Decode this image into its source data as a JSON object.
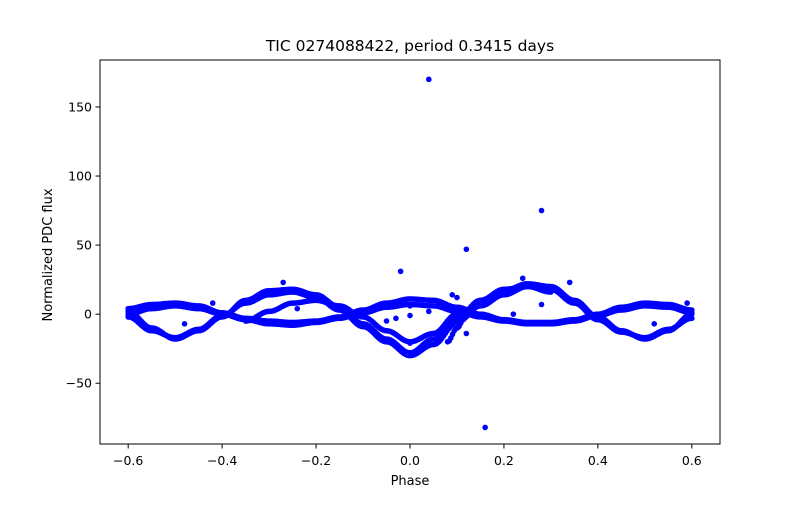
{
  "chart_data": {
    "type": "scatter",
    "title": "TIC 0274088422, period 0.3415 days",
    "xlabel": "Phase",
    "ylabel": "Normalized PDC flux",
    "xlim": [
      -0.66,
      0.66
    ],
    "ylim": [
      -94,
      184
    ],
    "xticks": [
      -0.6,
      -0.4,
      -0.2,
      0.0,
      0.2,
      0.4,
      0.6
    ],
    "xtick_labels": [
      "−0.6",
      "−0.4",
      "−0.2",
      "0.0",
      "0.2",
      "0.4",
      "0.6"
    ],
    "yticks": [
      -50,
      0,
      50,
      100,
      150
    ],
    "ytick_labels": [
      "−50",
      "0",
      "50",
      "100",
      "150"
    ],
    "grid": false,
    "colors": {
      "points": "#0000ff"
    },
    "series": [
      {
        "traces": [
          {
            "x": [
              -0.6,
              -0.55,
              -0.5,
              -0.45,
              -0.4,
              -0.35,
              -0.3,
              -0.25,
              -0.2,
              -0.15,
              -0.1,
              -0.05,
              0.0,
              0.05,
              0.1,
              0.15,
              0.2,
              0.25,
              0.3,
              0.35,
              0.4,
              0.45,
              0.5,
              0.55,
              0.6
            ],
            "y": [
              2,
              -10,
              -18,
              -12,
              -2,
              10,
              17,
              18,
              14,
              5,
              -7,
              -18,
              -28,
              -18,
              -3,
              10,
              17,
              22,
              20,
              10,
              -2,
              -12,
              -18,
              -12,
              0
            ]
          },
          {
            "x": [
              -0.6,
              -0.55,
              -0.5,
              -0.45,
              -0.4,
              -0.35,
              -0.3,
              -0.25,
              -0.2,
              -0.15,
              -0.1,
              -0.05,
              0.0,
              0.05,
              0.1,
              0.15,
              0.2,
              0.25,
              0.3,
              0.35,
              0.4,
              0.45,
              0.5,
              0.55,
              0.6
            ],
            "y": [
              -2,
              -12,
              -17,
              -11,
              -1,
              8,
              14,
              16,
              12,
              3,
              -9,
              -20,
              -30,
              -22,
              -6,
              6,
              14,
              20,
              18,
              8,
              -4,
              -13,
              -17,
              -11,
              -3
            ]
          },
          {
            "x": [
              -0.6,
              -0.55,
              -0.5,
              -0.45,
              -0.4,
              -0.35,
              -0.3,
              -0.25,
              -0.2,
              -0.15,
              -0.1,
              -0.05,
              0.0,
              0.05,
              0.1,
              0.15,
              0.2,
              0.25,
              0.3,
              0.35,
              0.4,
              0.45,
              0.5,
              0.55,
              0.6
            ],
            "y": [
              4,
              7,
              8,
              6,
              1,
              -3,
              -5,
              -6,
              -5,
              -2,
              3,
              8,
              11,
              10,
              5,
              0,
              -4,
              -6,
              -6,
              -4,
              0,
              5,
              8,
              7,
              3
            ]
          },
          {
            "x": [
              -0.6,
              -0.55,
              -0.5,
              -0.45,
              -0.4,
              -0.35,
              -0.3,
              -0.25,
              -0.2,
              -0.15,
              -0.1,
              -0.05,
              0.0,
              0.05,
              0.1,
              0.15,
              0.2,
              0.25,
              0.3,
              0.35,
              0.4,
              0.45,
              0.5,
              0.55,
              0.6
            ],
            "y": [
              0,
              4,
              6,
              4,
              0,
              -4,
              -7,
              -8,
              -6,
              -3,
              1,
              5,
              7,
              6,
              2,
              -2,
              -5,
              -7,
              -7,
              -5,
              -1,
              3,
              6,
              5,
              1
            ]
          },
          {
            "x": [
              -0.35,
              -0.3,
              -0.25,
              -0.2,
              -0.15,
              -0.1,
              -0.05,
              0.0,
              0.05,
              0.1
            ],
            "y": [
              -5,
              2,
              8,
              10,
              6,
              -2,
              -12,
              -20,
              -14,
              0
            ]
          },
          {
            "x": [
              0.08,
              0.1,
              0.12,
              0.15,
              0.2,
              0.25,
              0.3
            ],
            "y": [
              -20,
              -10,
              0,
              10,
              18,
              20,
              16
            ]
          }
        ],
        "outliers": [
          {
            "x": 0.04,
            "y": 170
          },
          {
            "x": 0.28,
            "y": 75
          },
          {
            "x": 0.12,
            "y": 47
          },
          {
            "x": -0.02,
            "y": 31
          },
          {
            "x": 0.24,
            "y": 26
          },
          {
            "x": 0.34,
            "y": 23
          },
          {
            "x": -0.27,
            "y": 23
          },
          {
            "x": 0.16,
            "y": -82
          },
          {
            "x": -0.48,
            "y": -7
          },
          {
            "x": 0.52,
            "y": -7
          },
          {
            "x": -0.42,
            "y": 8
          },
          {
            "x": 0.59,
            "y": 8
          },
          {
            "x": -0.24,
            "y": 4
          },
          {
            "x": 0.28,
            "y": 7
          },
          {
            "x": 0.12,
            "y": -14
          },
          {
            "x": -0.03,
            "y": -3
          },
          {
            "x": 0.0,
            "y": 6
          },
          {
            "x": 0.04,
            "y": 2
          },
          {
            "x": -0.05,
            "y": -5
          },
          {
            "x": 0.22,
            "y": 0
          },
          {
            "x": 0.0,
            "y": -21
          },
          {
            "x": 0.09,
            "y": 14
          },
          {
            "x": 0.1,
            "y": 12
          },
          {
            "x": 0.0,
            "y": -1
          }
        ]
      }
    ]
  }
}
